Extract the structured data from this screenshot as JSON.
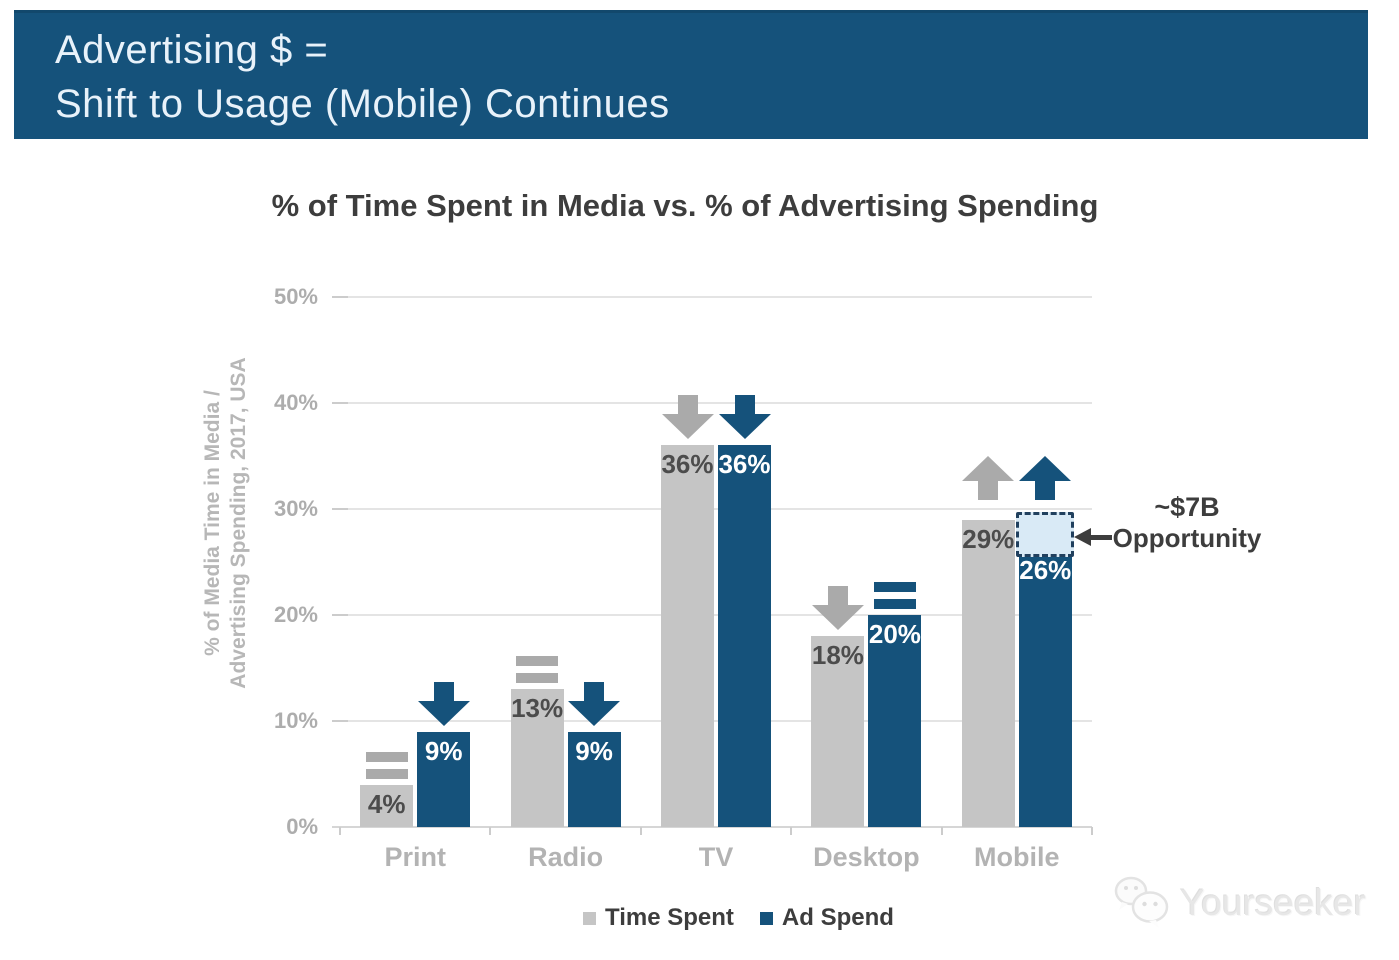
{
  "header": {
    "line1": "Advertising $ =",
    "line2": "Shift to Usage (Mobile) Continues",
    "bg_color": "#15527b",
    "text_color": "#e8f2fa"
  },
  "chart_data": {
    "type": "bar",
    "title": "% of Time Spent in Media vs. % of Advertising Spending",
    "ylabel_lines": [
      "% of Media Time in Media /",
      "Advertising Spending, 2017, USA"
    ],
    "categories": [
      "Print",
      "Radio",
      "TV",
      "Desktop",
      "Mobile"
    ],
    "series": [
      {
        "name": "Time Spent",
        "color": "#c5c5c5",
        "label_color": "#4c4c4c",
        "indicator_color": "#aaaaaa",
        "values": [
          4,
          13,
          36,
          18,
          29
        ],
        "data_labels": [
          "4%",
          "13%",
          "36%",
          "18%",
          "29%"
        ],
        "trend_indicators": [
          "equal",
          "equal",
          "down",
          "down",
          "up"
        ]
      },
      {
        "name": "Ad Spend",
        "color": "#15527b",
        "label_color": "#ffffff",
        "indicator_color": "#15527b",
        "values": [
          9,
          9,
          36,
          20,
          26
        ],
        "data_labels": [
          "9%",
          "9%",
          "36%",
          "20%",
          "26%"
        ],
        "trend_indicators": [
          "down",
          "down",
          "down",
          "equal",
          "up"
        ]
      }
    ],
    "ylim": [
      0,
      50
    ],
    "yticks": [
      {
        "value": 0,
        "label": "0%"
      },
      {
        "value": 10,
        "label": "10%"
      },
      {
        "value": 20,
        "label": "20%"
      },
      {
        "value": 30,
        "label": "30%"
      },
      {
        "value": 40,
        "label": "40%"
      },
      {
        "value": 50,
        "label": "50%"
      }
    ],
    "grid": true,
    "legend_position": "bottom",
    "annotation": {
      "line1": "~$7B",
      "line2": "Opportunity",
      "category": "Mobile",
      "series": "Ad Spend",
      "box_from_value": 26,
      "box_to_value": 29.7,
      "box_fill": "#d9eaf6",
      "box_border": "#21405e"
    }
  },
  "watermark": {
    "text": "Yourseeker"
  }
}
